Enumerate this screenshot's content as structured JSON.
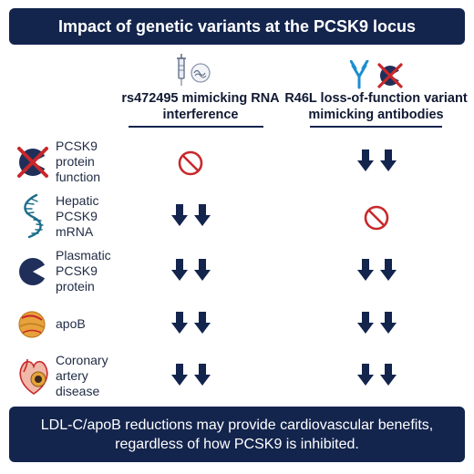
{
  "title": "Impact of genetic variants at the PCSK9 locus",
  "columns": [
    {
      "label": "rs472495 mimicking RNA interference",
      "icon": "syringe-rna-icon"
    },
    {
      "label": "R46L loss-of-function variant mimicking antibodies",
      "icon": "antibody-blocked-pcsk9-icon"
    }
  ],
  "rows": [
    {
      "label_lines": [
        "PCSK9",
        "protein",
        "function"
      ],
      "icon": "pcsk9-protein-crossed-icon",
      "effects": [
        "no-effect",
        "decrease"
      ]
    },
    {
      "label_lines": [
        "Hepatic",
        "PCSK9",
        "mRNA"
      ],
      "icon": "mrna-strand-icon",
      "effects": [
        "decrease",
        "no-effect"
      ]
    },
    {
      "label_lines": [
        "Plasmatic",
        "PCSK9",
        "protein"
      ],
      "icon": "pcsk9-protein-icon",
      "effects": [
        "decrease",
        "decrease"
      ]
    },
    {
      "label_lines": [
        "apoB"
      ],
      "icon": "lipoprotein-particle-icon",
      "effects": [
        "decrease",
        "decrease"
      ]
    },
    {
      "label_lines": [
        "Coronary",
        "artery",
        "disease"
      ],
      "icon": "heart-artery-icon",
      "effects": [
        "decrease",
        "decrease"
      ]
    }
  ],
  "footer": {
    "line1": "LDL-C/apoB reductions may provide cardiovascular benefits,",
    "line2": "regardless of how PCSK9 is inhibited."
  },
  "colors": {
    "navy": "#13244d",
    "red": "#c8282b",
    "orange": "#e8a23c"
  }
}
